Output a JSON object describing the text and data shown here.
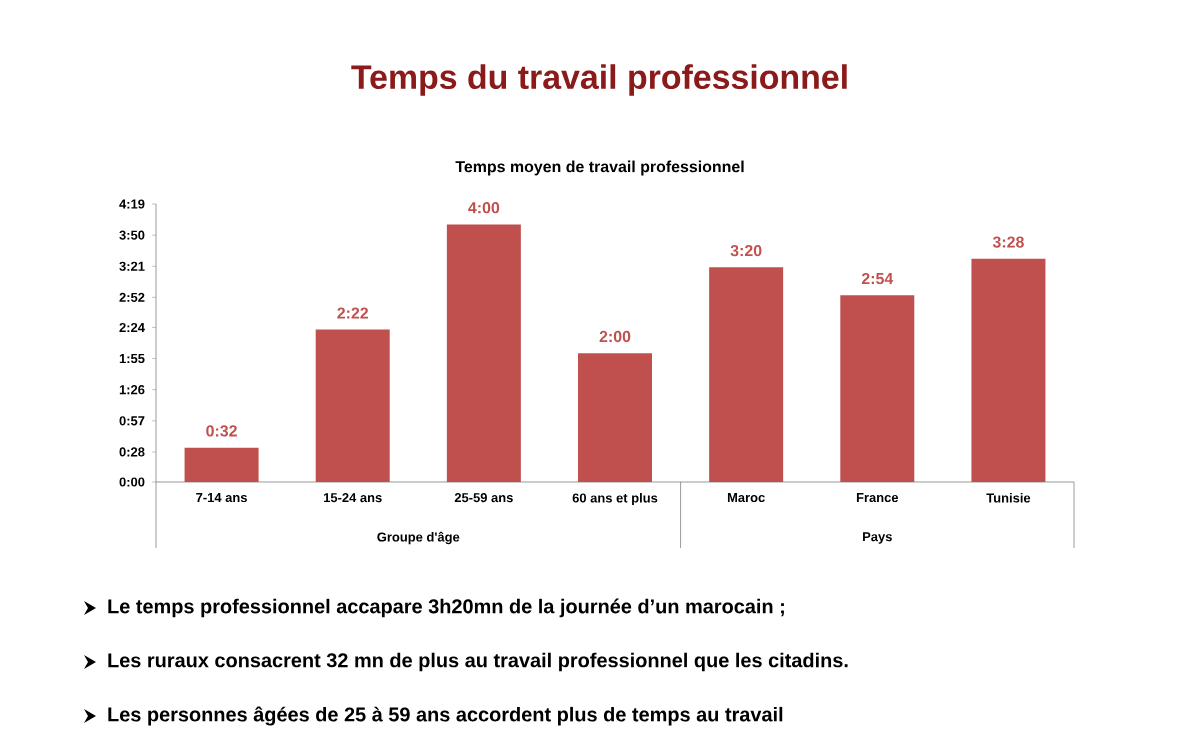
{
  "chart_data": {
    "type": "bar",
    "title": "Temps du travail professionnel",
    "subtitle": "Temps moyen de travail professionnel",
    "categories": [
      "7-14 ans",
      "15-24 ans",
      "25-59 ans",
      "60 ans et plus",
      "Maroc",
      "France",
      "Tunisie"
    ],
    "values": [
      32,
      142,
      240,
      120,
      200,
      174,
      208
    ],
    "value_labels": [
      "0:32",
      "2:22",
      "4:00",
      "2:00",
      "3:20",
      "2:54",
      "3:28"
    ],
    "color": "#c0504d",
    "ylim": [
      0,
      259
    ],
    "yticks": [
      {
        "value": 0,
        "label": "0:00"
      },
      {
        "value": 28,
        "label": "0:28"
      },
      {
        "value": 57,
        "label": "0:57"
      },
      {
        "value": 86,
        "label": "1:26"
      },
      {
        "value": 115,
        "label": "1:55"
      },
      {
        "value": 144,
        "label": "2:24"
      },
      {
        "value": 172,
        "label": "2:52"
      },
      {
        "value": 201,
        "label": "3:21"
      },
      {
        "value": 230,
        "label": "3:50"
      },
      {
        "value": 259,
        "label": "4:19"
      }
    ],
    "grid": false,
    "annotations": [
      "Groupe d'âge",
      "Pays",
      "Le temps professionnel accapare 3h20mn de la journée d’un marocain ;",
      "Les ruraux consacrent 32 mn de plus au travail professionnel que les citadins.",
      "Les personnes âgées de 25 à 59 ans accordent plus de temps au travail"
    ]
  }
}
